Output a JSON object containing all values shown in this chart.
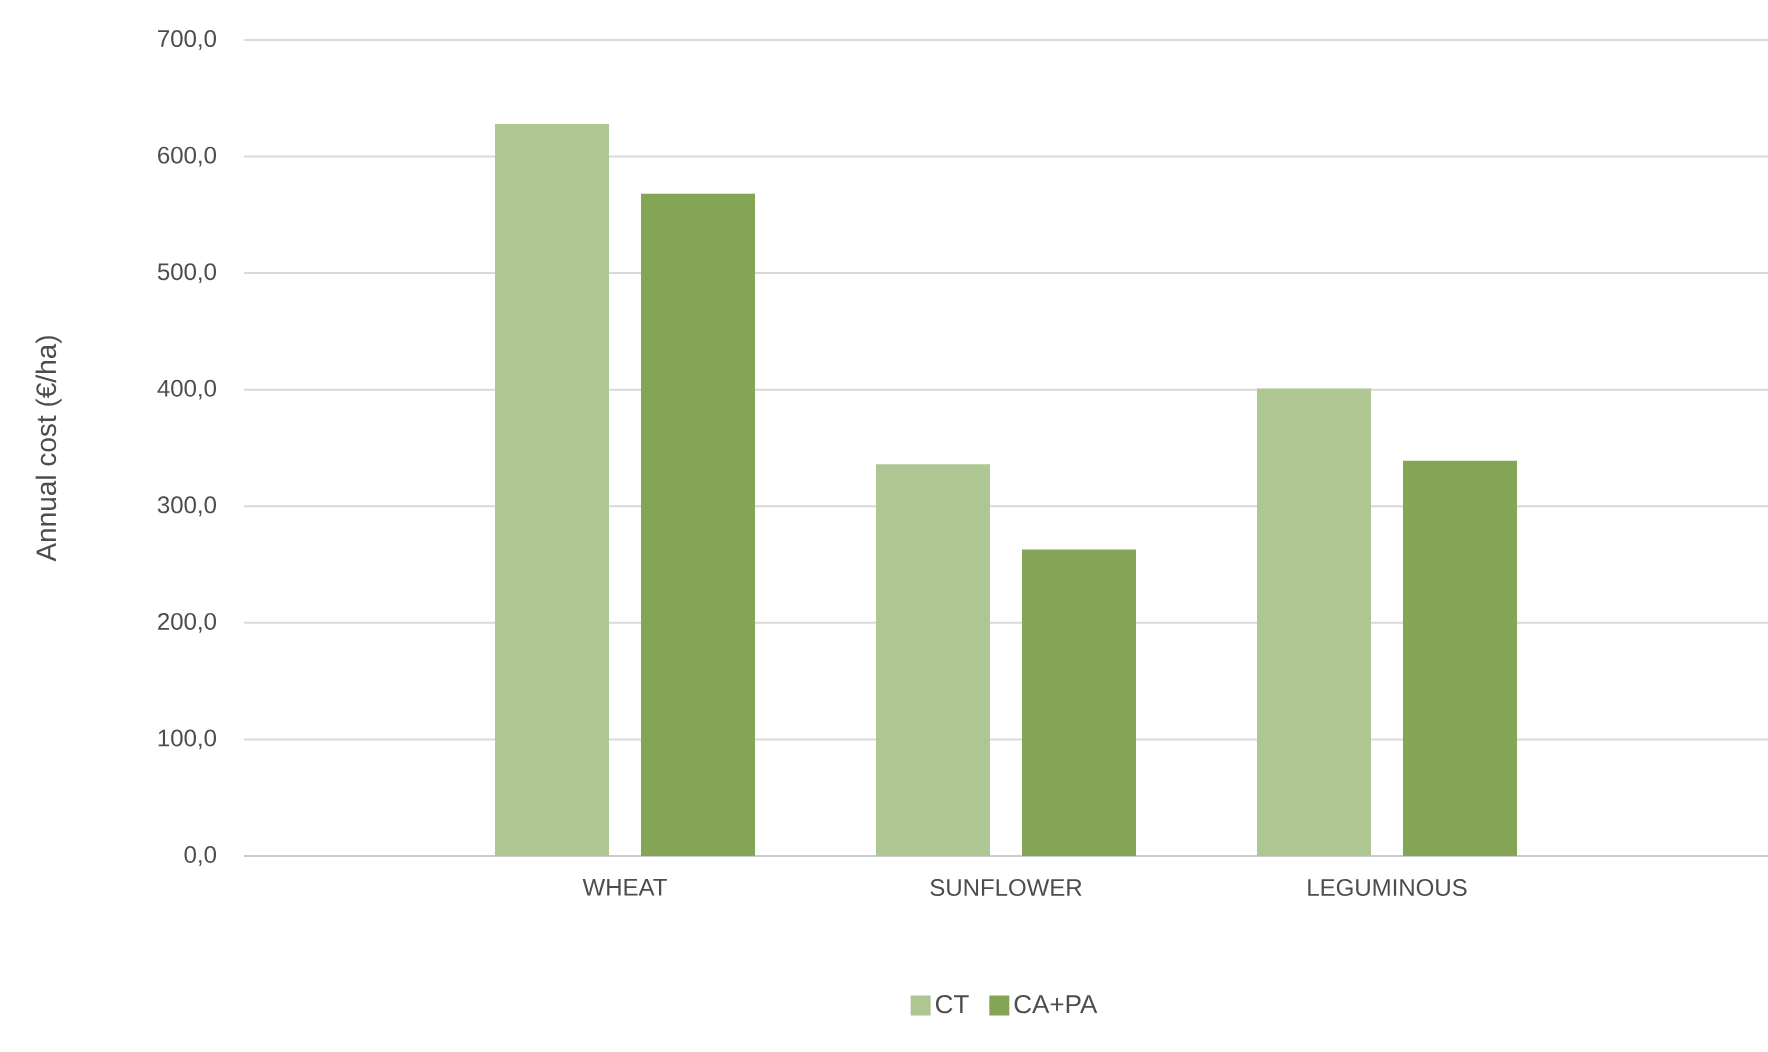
{
  "chart_data": {
    "type": "bar",
    "ylabel": "Annual cost (€/ha)",
    "categories": [
      "WHEAT",
      "SUNFLOWER",
      "LEGUMINOUS"
    ],
    "series": [
      {
        "name": "CT",
        "color": "#adc692",
        "values": [
          628,
          336,
          401
        ]
      },
      {
        "name": "CA+PA",
        "color": "#84a555",
        "values": [
          568,
          263,
          339
        ]
      }
    ],
    "ylim": [
      0,
      700
    ],
    "yticks": [
      {
        "value": 0,
        "label": "0,0"
      },
      {
        "value": 100,
        "label": "100,0"
      },
      {
        "value": 200,
        "label": "200,0"
      },
      {
        "value": 300,
        "label": "300,0"
      },
      {
        "value": 400,
        "label": "400,0"
      },
      {
        "value": 500,
        "label": "500,0"
      },
      {
        "value": 600,
        "label": "600,0"
      },
      {
        "value": 700,
        "label": "700,0"
      }
    ],
    "grid": "y",
    "legend": "bottom"
  }
}
